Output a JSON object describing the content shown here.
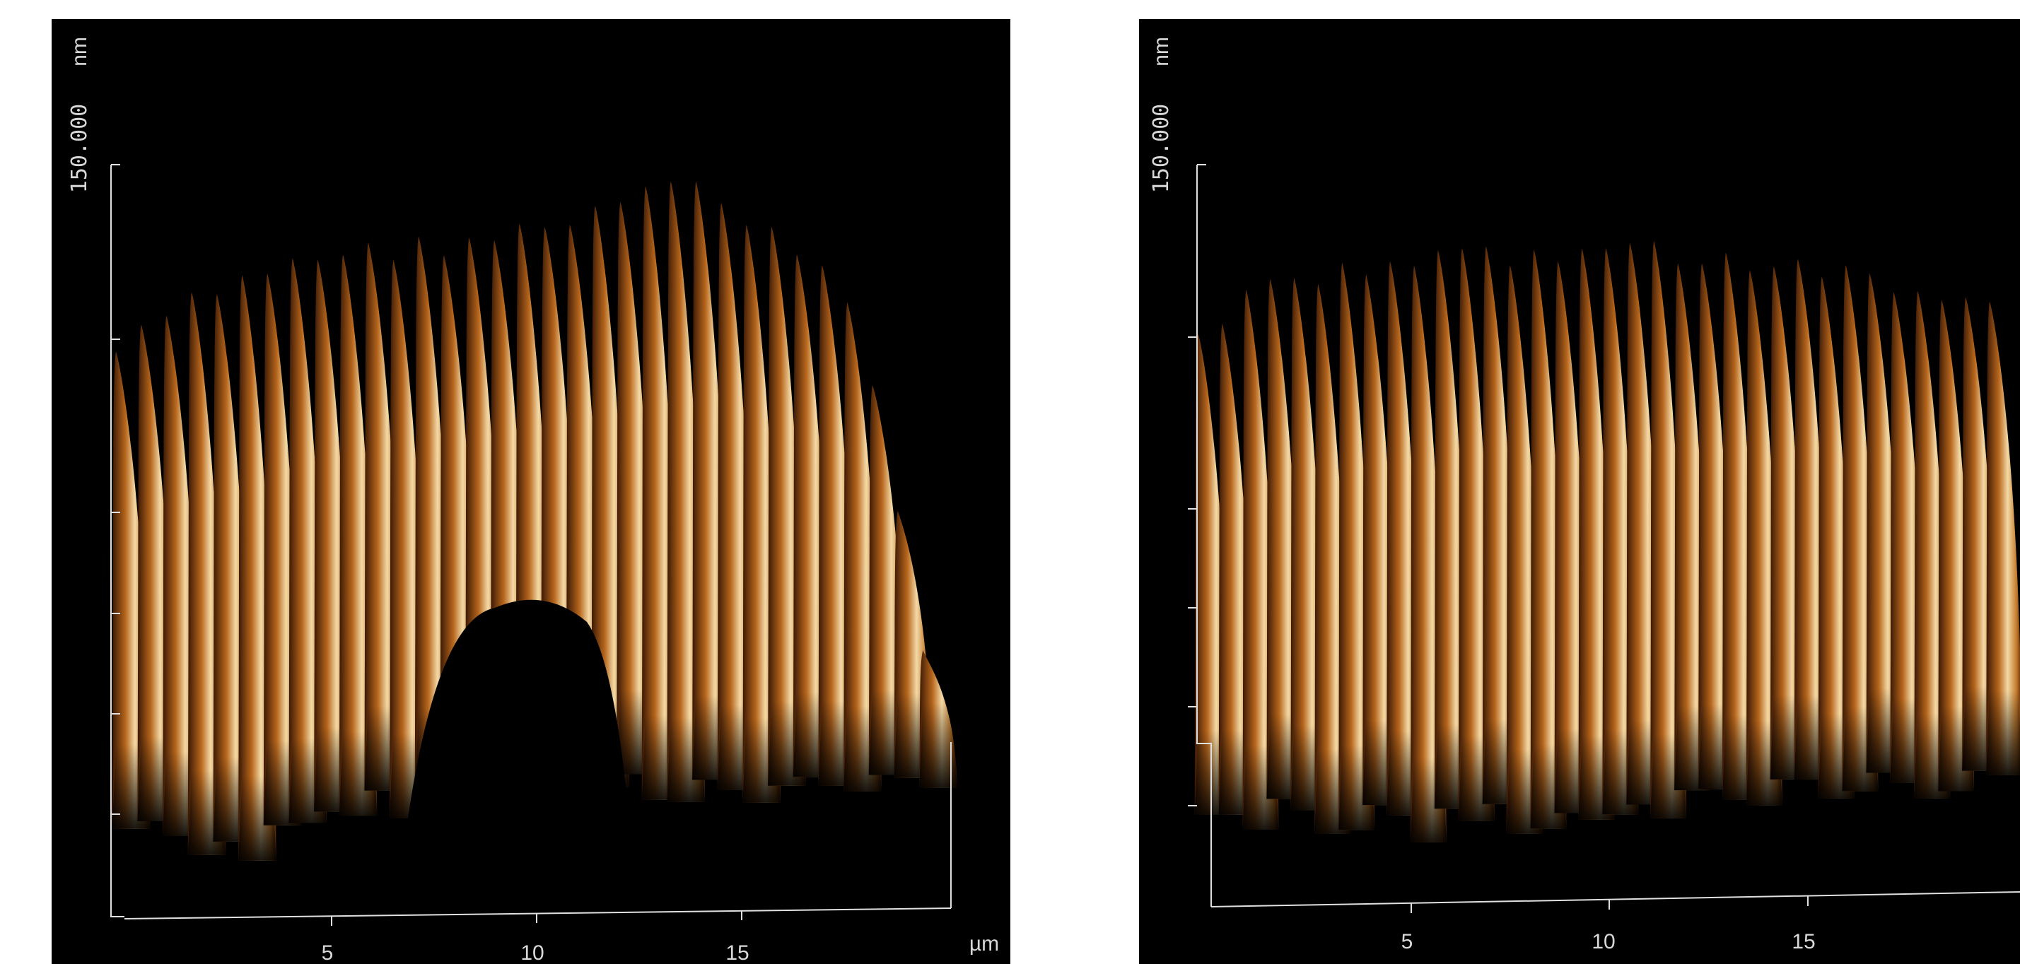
{
  "panels": [
    {
      "z_unit": "nm",
      "z_max": "150.000",
      "x_ticks": [
        "5",
        "10",
        "15"
      ],
      "x_unit": "µm"
    },
    {
      "z_unit": "nm",
      "z_max": "150.000",
      "x_ticks": [
        "5",
        "10",
        "15"
      ]
    }
  ]
}
